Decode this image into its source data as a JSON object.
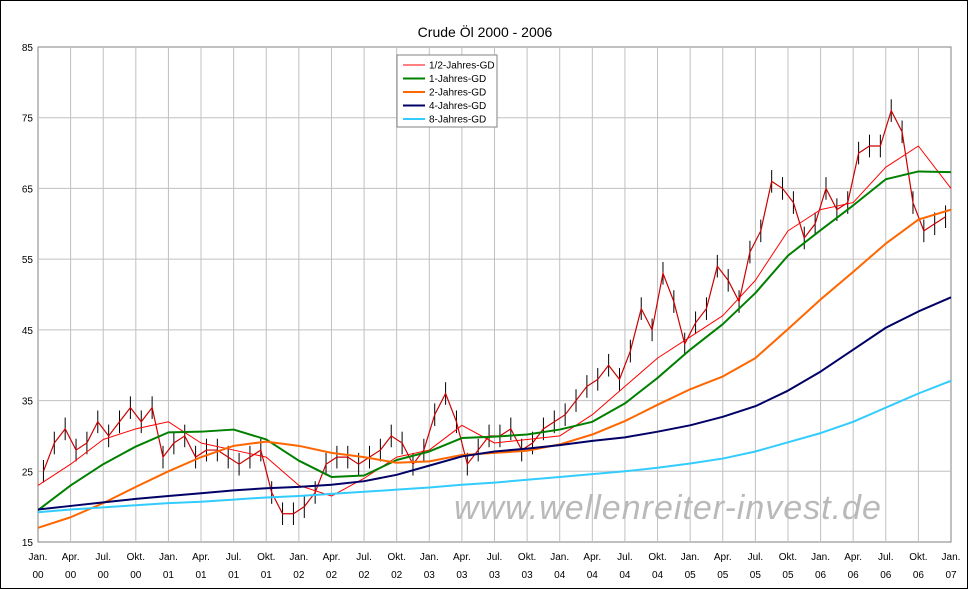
{
  "chart_data": {
    "type": "line",
    "title": "Crude Öl 2000 - 2006",
    "watermark": "www.wellenreiter-invest.de",
    "ylim": [
      15,
      85
    ],
    "yticks": [
      15,
      25,
      35,
      45,
      55,
      65,
      75,
      85
    ],
    "x_start": "2000-01",
    "x_end": "2007-01",
    "x_ticks": [
      [
        "Jan.",
        "00"
      ],
      [
        "Apr.",
        "00"
      ],
      [
        "Jul.",
        "00"
      ],
      [
        "Okt.",
        "00"
      ],
      [
        "Jan.",
        "01"
      ],
      [
        "Apr.",
        "01"
      ],
      [
        "Jul.",
        "01"
      ],
      [
        "Okt.",
        "01"
      ],
      [
        "Jan.",
        "02"
      ],
      [
        "Apr.",
        "02"
      ],
      [
        "Jul.",
        "02"
      ],
      [
        "Okt.",
        "02"
      ],
      [
        "Jan.",
        "03"
      ],
      [
        "Apr.",
        "03"
      ],
      [
        "Jul.",
        "03"
      ],
      [
        "Okt.",
        "03"
      ],
      [
        "Jan.",
        "04"
      ],
      [
        "Apr.",
        "04"
      ],
      [
        "Jul.",
        "04"
      ],
      [
        "Okt.",
        "04"
      ],
      [
        "Jan.",
        "05"
      ],
      [
        "Apr.",
        "05"
      ],
      [
        "Jul.",
        "05"
      ],
      [
        "Okt.",
        "05"
      ],
      [
        "Jan.",
        "06"
      ],
      [
        "Apr.",
        "06"
      ],
      [
        "Jul.",
        "06"
      ],
      [
        "Okt.",
        "06"
      ],
      [
        "Jan.",
        "07"
      ]
    ],
    "legend_position": "top-center",
    "price": {
      "color": "#cc0000",
      "x": [
        "2000-01",
        "2000-02",
        "2000-03",
        "2000-04",
        "2000-05",
        "2000-06",
        "2000-07",
        "2000-08",
        "2000-09",
        "2000-10",
        "2000-11",
        "2000-12",
        "2001-01",
        "2001-02",
        "2001-03",
        "2001-04",
        "2001-05",
        "2001-06",
        "2001-07",
        "2001-08",
        "2001-09",
        "2001-10",
        "2001-11",
        "2001-12",
        "2002-01",
        "2002-02",
        "2002-03",
        "2002-04",
        "2002-05",
        "2002-06",
        "2002-07",
        "2002-08",
        "2002-09",
        "2002-10",
        "2002-11",
        "2002-12",
        "2003-01",
        "2003-02",
        "2003-03",
        "2003-04",
        "2003-05",
        "2003-06",
        "2003-07",
        "2003-08",
        "2003-09",
        "2003-10",
        "2003-11",
        "2003-12",
        "2004-01",
        "2004-02",
        "2004-03",
        "2004-04",
        "2004-05",
        "2004-06",
        "2004-07",
        "2004-08",
        "2004-09",
        "2004-10",
        "2004-11",
        "2004-12",
        "2005-01",
        "2005-02",
        "2005-03",
        "2005-04",
        "2005-05",
        "2005-06",
        "2005-07",
        "2005-08",
        "2005-09",
        "2005-10",
        "2005-11",
        "2005-12",
        "2006-01",
        "2006-02",
        "2006-03",
        "2006-04",
        "2006-05",
        "2006-06",
        "2006-07",
        "2006-08",
        "2006-09",
        "2006-10",
        "2006-11",
        "2006-12"
      ],
      "y": [
        25,
        29,
        31,
        28,
        29,
        32,
        30,
        32,
        34,
        32,
        34,
        27,
        29,
        30,
        27,
        28,
        28,
        27,
        26,
        27,
        28,
        22,
        19,
        19,
        20,
        22,
        26,
        27,
        27,
        26,
        27,
        28,
        30,
        29,
        26,
        28,
        33,
        36,
        32,
        26,
        28,
        30,
        30,
        31,
        28,
        29,
        31,
        32,
        33,
        35,
        37,
        38,
        40,
        38,
        42,
        48,
        45,
        53,
        49,
        43,
        46,
        48,
        54,
        52,
        49,
        56,
        59,
        66,
        65,
        63,
        58,
        60,
        65,
        62,
        63,
        70,
        71,
        71,
        76,
        73,
        63,
        59,
        60,
        61
      ]
    },
    "series": [
      {
        "name": "1/2-Jahres-GD",
        "color": "#ff0000",
        "x": [
          "2000-01",
          "2000-04",
          "2000-07",
          "2000-10",
          "2001-01",
          "2001-04",
          "2001-07",
          "2001-10",
          "2002-01",
          "2002-04",
          "2002-07",
          "2002-10",
          "2003-01",
          "2003-04",
          "2003-07",
          "2003-10",
          "2004-01",
          "2004-04",
          "2004-07",
          "2004-10",
          "2005-01",
          "2005-04",
          "2005-07",
          "2005-10",
          "2006-01",
          "2006-04",
          "2006-07",
          "2006-10",
          "2007-01"
        ],
        "y": [
          23,
          26,
          29.5,
          31,
          32,
          29,
          28,
          27,
          23,
          21.5,
          24,
          27,
          28,
          31.5,
          29,
          29.5,
          30,
          33,
          37,
          41,
          44,
          47,
          52,
          59,
          62,
          63,
          68,
          71,
          65
        ]
      },
      {
        "name": "1-Jahres-GD",
        "color": "#008000",
        "x": [
          "2000-01",
          "2000-04",
          "2000-07",
          "2000-10",
          "2001-01",
          "2001-04",
          "2001-07",
          "2001-10",
          "2002-01",
          "2002-04",
          "2002-07",
          "2002-10",
          "2003-01",
          "2003-04",
          "2003-07",
          "2003-10",
          "2004-01",
          "2004-04",
          "2004-07",
          "2004-10",
          "2005-01",
          "2005-04",
          "2005-07",
          "2005-10",
          "2006-01",
          "2006-04",
          "2006-07",
          "2006-10",
          "2007-01"
        ],
        "y": [
          19.5,
          23,
          26,
          28.5,
          30.5,
          30.6,
          30.9,
          29.5,
          26.5,
          24.2,
          24.4,
          26.6,
          27.8,
          29.7,
          29.9,
          30.2,
          30.9,
          32,
          34.6,
          38.2,
          42.2,
          45.8,
          50.2,
          55.5,
          59.1,
          62.6,
          66.3,
          67.4,
          67.3
        ]
      },
      {
        "name": "2-Jahres-GD",
        "color": "#ff6600",
        "x": [
          "2000-01",
          "2000-04",
          "2000-07",
          "2000-10",
          "2001-01",
          "2001-04",
          "2001-07",
          "2001-10",
          "2002-01",
          "2002-04",
          "2002-07",
          "2002-10",
          "2003-01",
          "2003-04",
          "2003-07",
          "2003-10",
          "2004-01",
          "2004-04",
          "2004-07",
          "2004-10",
          "2005-01",
          "2005-04",
          "2005-07",
          "2005-10",
          "2006-01",
          "2006-04",
          "2006-07",
          "2006-10",
          "2007-01"
        ],
        "y": [
          17,
          18.5,
          20.5,
          22.8,
          25,
          27,
          28.6,
          29.2,
          28.6,
          27.6,
          27,
          26.2,
          26.4,
          27.3,
          27.6,
          27.9,
          28.8,
          30.2,
          32.1,
          34.4,
          36.6,
          38.4,
          41,
          45.1,
          49.3,
          53.2,
          57.2,
          60.6,
          62
        ]
      },
      {
        "name": "4-Jahres-GD",
        "color": "#000066",
        "x": [
          "2000-01",
          "2000-04",
          "2000-07",
          "2000-10",
          "2001-01",
          "2001-04",
          "2001-07",
          "2001-10",
          "2002-01",
          "2002-04",
          "2002-07",
          "2002-10",
          "2003-01",
          "2003-04",
          "2003-07",
          "2003-10",
          "2004-01",
          "2004-04",
          "2004-07",
          "2004-10",
          "2005-01",
          "2005-04",
          "2005-07",
          "2005-10",
          "2006-01",
          "2006-04",
          "2006-07",
          "2006-10",
          "2007-01"
        ],
        "y": [
          19.6,
          20.1,
          20.6,
          21.1,
          21.5,
          21.9,
          22.3,
          22.6,
          22.8,
          23.1,
          23.6,
          24.5,
          25.8,
          27.1,
          27.8,
          28.2,
          28.7,
          29.3,
          29.8,
          30.6,
          31.5,
          32.7,
          34.2,
          36.4,
          39.1,
          42.2,
          45.3,
          47.6,
          49.6
        ]
      },
      {
        "name": "8-Jahres-GD",
        "color": "#33ccff",
        "x": [
          "2000-01",
          "2000-04",
          "2000-07",
          "2000-10",
          "2001-01",
          "2001-04",
          "2001-07",
          "2001-10",
          "2002-01",
          "2002-04",
          "2002-07",
          "2002-10",
          "2003-01",
          "2003-04",
          "2003-07",
          "2003-10",
          "2004-01",
          "2004-04",
          "2004-07",
          "2004-10",
          "2005-01",
          "2005-04",
          "2005-07",
          "2005-10",
          "2006-01",
          "2006-04",
          "2006-07",
          "2006-10",
          "2007-01"
        ],
        "y": [
          19.2,
          19.6,
          19.9,
          20.2,
          20.5,
          20.7,
          21,
          21.3,
          21.5,
          21.8,
          22.1,
          22.4,
          22.7,
          23.1,
          23.4,
          23.8,
          24.2,
          24.6,
          25,
          25.5,
          26.1,
          26.8,
          27.8,
          29.1,
          30.4,
          32,
          34,
          36,
          37.8
        ]
      }
    ]
  }
}
